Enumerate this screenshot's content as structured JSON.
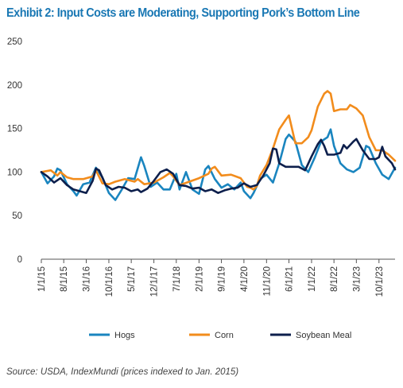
{
  "title": "Exhibit 2: Input Costs are Moderating, Supporting Pork’s Bottom Line",
  "source": "Source: USDA, IndexMundi (prices indexed to Jan. 2015)",
  "chart_data": {
    "type": "line",
    "title": "Exhibit 2: Input Costs are Moderating, Supporting Pork’s Bottom Line",
    "xlabel": "",
    "ylabel": "",
    "ylim": [
      0,
      250
    ],
    "yticks": [
      0,
      50,
      100,
      150,
      200,
      250
    ],
    "xlim": [
      "2015-01-01",
      "2024-03-01"
    ],
    "xtick_labels": [
      "1/1/15",
      "8/1/15",
      "3/1/16",
      "10/1/16",
      "5/1/17",
      "12/1/17",
      "7/1/18",
      "2/1/19",
      "9/1/19",
      "4/1/20",
      "11/1/20",
      "6/1/21",
      "1/1/22",
      "8/1/22",
      "3/1/23",
      "10/1/23"
    ],
    "xtick_dates": [
      "2015-01-01",
      "2015-08-01",
      "2016-03-01",
      "2016-10-01",
      "2017-05-01",
      "2017-12-01",
      "2018-07-01",
      "2019-02-01",
      "2019-09-01",
      "2020-04-01",
      "2020-11-01",
      "2021-06-01",
      "2022-01-01",
      "2022-08-01",
      "2023-03-01",
      "2023-10-01"
    ],
    "grid": false,
    "legend_position": "bottom",
    "series": [
      {
        "name": "Hogs",
        "color": "#1a85bf",
        "points": [
          [
            "2015-01-01",
            100
          ],
          [
            "2015-03-01",
            87
          ],
          [
            "2015-05-01",
            95
          ],
          [
            "2015-06-01",
            104
          ],
          [
            "2015-07-01",
            102
          ],
          [
            "2015-09-01",
            86
          ],
          [
            "2015-11-01",
            78
          ],
          [
            "2015-12-01",
            73
          ],
          [
            "2016-02-01",
            86
          ],
          [
            "2016-04-01",
            88
          ],
          [
            "2016-06-01",
            105
          ],
          [
            "2016-08-01",
            94
          ],
          [
            "2016-10-01",
            76
          ],
          [
            "2016-12-01",
            68
          ],
          [
            "2017-02-01",
            80
          ],
          [
            "2017-04-01",
            93
          ],
          [
            "2017-06-01",
            92
          ],
          [
            "2017-08-01",
            117
          ],
          [
            "2017-09-01",
            107
          ],
          [
            "2017-11-01",
            83
          ],
          [
            "2018-01-01",
            88
          ],
          [
            "2018-03-01",
            80
          ],
          [
            "2018-05-01",
            80
          ],
          [
            "2018-07-01",
            98
          ],
          [
            "2018-08-01",
            80
          ],
          [
            "2018-10-01",
            100
          ],
          [
            "2018-12-01",
            80
          ],
          [
            "2019-02-01",
            75
          ],
          [
            "2019-04-01",
            103
          ],
          [
            "2019-05-01",
            107
          ],
          [
            "2019-07-01",
            92
          ],
          [
            "2019-09-01",
            82
          ],
          [
            "2019-11-01",
            86
          ],
          [
            "2020-01-01",
            80
          ],
          [
            "2020-03-01",
            88
          ],
          [
            "2020-04-01",
            78
          ],
          [
            "2020-06-01",
            70
          ],
          [
            "2020-07-01",
            76
          ],
          [
            "2020-09-01",
            92
          ],
          [
            "2020-11-01",
            97
          ],
          [
            "2021-01-01",
            88
          ],
          [
            "2021-03-01",
            110
          ],
          [
            "2021-05-01",
            138
          ],
          [
            "2021-06-01",
            143
          ],
          [
            "2021-08-01",
            135
          ],
          [
            "2021-10-01",
            108
          ],
          [
            "2021-12-01",
            100
          ],
          [
            "2022-02-01",
            117
          ],
          [
            "2022-04-01",
            135
          ],
          [
            "2022-06-01",
            140
          ],
          [
            "2022-07-01",
            149
          ],
          [
            "2022-08-01",
            130
          ],
          [
            "2022-10-01",
            110
          ],
          [
            "2022-12-01",
            103
          ],
          [
            "2023-02-01",
            100
          ],
          [
            "2023-04-01",
            105
          ],
          [
            "2023-06-01",
            130
          ],
          [
            "2023-07-01",
            128
          ],
          [
            "2023-09-01",
            110
          ],
          [
            "2023-11-01",
            97
          ],
          [
            "2024-01-01",
            92
          ],
          [
            "2024-03-01",
            105
          ]
        ]
      },
      {
        "name": "Corn",
        "color": "#f28c1c",
        "points": [
          [
            "2015-01-01",
            100
          ],
          [
            "2015-04-01",
            102
          ],
          [
            "2015-06-01",
            96
          ],
          [
            "2015-07-01",
            100
          ],
          [
            "2015-09-01",
            94
          ],
          [
            "2015-11-01",
            92
          ],
          [
            "2016-02-01",
            92
          ],
          [
            "2016-05-01",
            95
          ],
          [
            "2016-06-01",
            102
          ],
          [
            "2016-08-01",
            87
          ],
          [
            "2016-10-01",
            86
          ],
          [
            "2016-12-01",
            89
          ],
          [
            "2017-03-01",
            92
          ],
          [
            "2017-06-01",
            89
          ],
          [
            "2017-07-01",
            92
          ],
          [
            "2017-09-01",
            86
          ],
          [
            "2017-12-01",
            88
          ],
          [
            "2018-03-01",
            94
          ],
          [
            "2018-05-01",
            99
          ],
          [
            "2018-06-01",
            95
          ],
          [
            "2018-08-01",
            85
          ],
          [
            "2018-11-01",
            89
          ],
          [
            "2019-02-01",
            93
          ],
          [
            "2019-05-01",
            98
          ],
          [
            "2019-06-01",
            104
          ],
          [
            "2019-07-01",
            106
          ],
          [
            "2019-09-01",
            96
          ],
          [
            "2019-12-01",
            97
          ],
          [
            "2020-03-01",
            93
          ],
          [
            "2020-05-01",
            83
          ],
          [
            "2020-06-01",
            82
          ],
          [
            "2020-07-01",
            80
          ],
          [
            "2020-08-01",
            84
          ],
          [
            "2020-09-01",
            96
          ],
          [
            "2020-11-01",
            108
          ],
          [
            "2021-01-01",
            127
          ],
          [
            "2021-03-01",
            149
          ],
          [
            "2021-05-01",
            160
          ],
          [
            "2021-06-01",
            165
          ],
          [
            "2021-08-01",
            133
          ],
          [
            "2021-10-01",
            133
          ],
          [
            "2021-12-01",
            140
          ],
          [
            "2022-01-01",
            148
          ],
          [
            "2022-03-01",
            175
          ],
          [
            "2022-05-01",
            190
          ],
          [
            "2022-06-01",
            193
          ],
          [
            "2022-07-01",
            190
          ],
          [
            "2022-08-01",
            170
          ],
          [
            "2022-10-01",
            172
          ],
          [
            "2022-12-01",
            172
          ],
          [
            "2023-01-01",
            177
          ],
          [
            "2023-03-01",
            173
          ],
          [
            "2023-05-01",
            165
          ],
          [
            "2023-07-01",
            140
          ],
          [
            "2023-09-01",
            125
          ],
          [
            "2023-11-01",
            125
          ],
          [
            "2024-01-01",
            120
          ],
          [
            "2024-03-01",
            113
          ]
        ]
      },
      {
        "name": "Soybean Meal",
        "color": "#0d1f4c",
        "points": [
          [
            "2015-01-01",
            100
          ],
          [
            "2015-03-01",
            95
          ],
          [
            "2015-05-01",
            88
          ],
          [
            "2015-07-01",
            93
          ],
          [
            "2015-09-01",
            85
          ],
          [
            "2015-11-01",
            80
          ],
          [
            "2016-01-01",
            78
          ],
          [
            "2016-03-01",
            76
          ],
          [
            "2016-05-01",
            90
          ],
          [
            "2016-06-01",
            104
          ],
          [
            "2016-07-01",
            102
          ],
          [
            "2016-09-01",
            85
          ],
          [
            "2016-11-01",
            80
          ],
          [
            "2017-01-01",
            83
          ],
          [
            "2017-03-01",
            82
          ],
          [
            "2017-05-01",
            78
          ],
          [
            "2017-07-01",
            80
          ],
          [
            "2017-08-01",
            77
          ],
          [
            "2017-10-01",
            81
          ],
          [
            "2017-12-01",
            90
          ],
          [
            "2018-02-01",
            100
          ],
          [
            "2018-04-01",
            103
          ],
          [
            "2018-06-01",
            98
          ],
          [
            "2018-08-01",
            85
          ],
          [
            "2018-10-01",
            84
          ],
          [
            "2018-12-01",
            81
          ],
          [
            "2019-02-01",
            82
          ],
          [
            "2019-04-01",
            78
          ],
          [
            "2019-06-01",
            80
          ],
          [
            "2019-08-01",
            76
          ],
          [
            "2019-10-01",
            79
          ],
          [
            "2019-12-01",
            81
          ],
          [
            "2020-02-01",
            82
          ],
          [
            "2020-04-01",
            87
          ],
          [
            "2020-06-01",
            83
          ],
          [
            "2020-08-01",
            85
          ],
          [
            "2020-10-01",
            96
          ],
          [
            "2020-12-01",
            110
          ],
          [
            "2021-01-01",
            127
          ],
          [
            "2021-02-01",
            126
          ],
          [
            "2021-03-01",
            110
          ],
          [
            "2021-05-01",
            106
          ],
          [
            "2021-07-01",
            106
          ],
          [
            "2021-09-01",
            106
          ],
          [
            "2021-11-01",
            102
          ],
          [
            "2022-01-01",
            118
          ],
          [
            "2022-03-01",
            132
          ],
          [
            "2022-04-01",
            137
          ],
          [
            "2022-05-01",
            130
          ],
          [
            "2022-06-01",
            120
          ],
          [
            "2022-08-01",
            120
          ],
          [
            "2022-10-01",
            122
          ],
          [
            "2022-11-01",
            131
          ],
          [
            "2022-12-01",
            127
          ],
          [
            "2023-02-01",
            135
          ],
          [
            "2023-03-01",
            138
          ],
          [
            "2023-05-01",
            125
          ],
          [
            "2023-07-01",
            115
          ],
          [
            "2023-09-01",
            115
          ],
          [
            "2023-10-01",
            117
          ],
          [
            "2023-11-01",
            129
          ],
          [
            "2023-12-01",
            118
          ],
          [
            "2024-02-01",
            110
          ],
          [
            "2024-03-01",
            103
          ]
        ]
      }
    ]
  }
}
